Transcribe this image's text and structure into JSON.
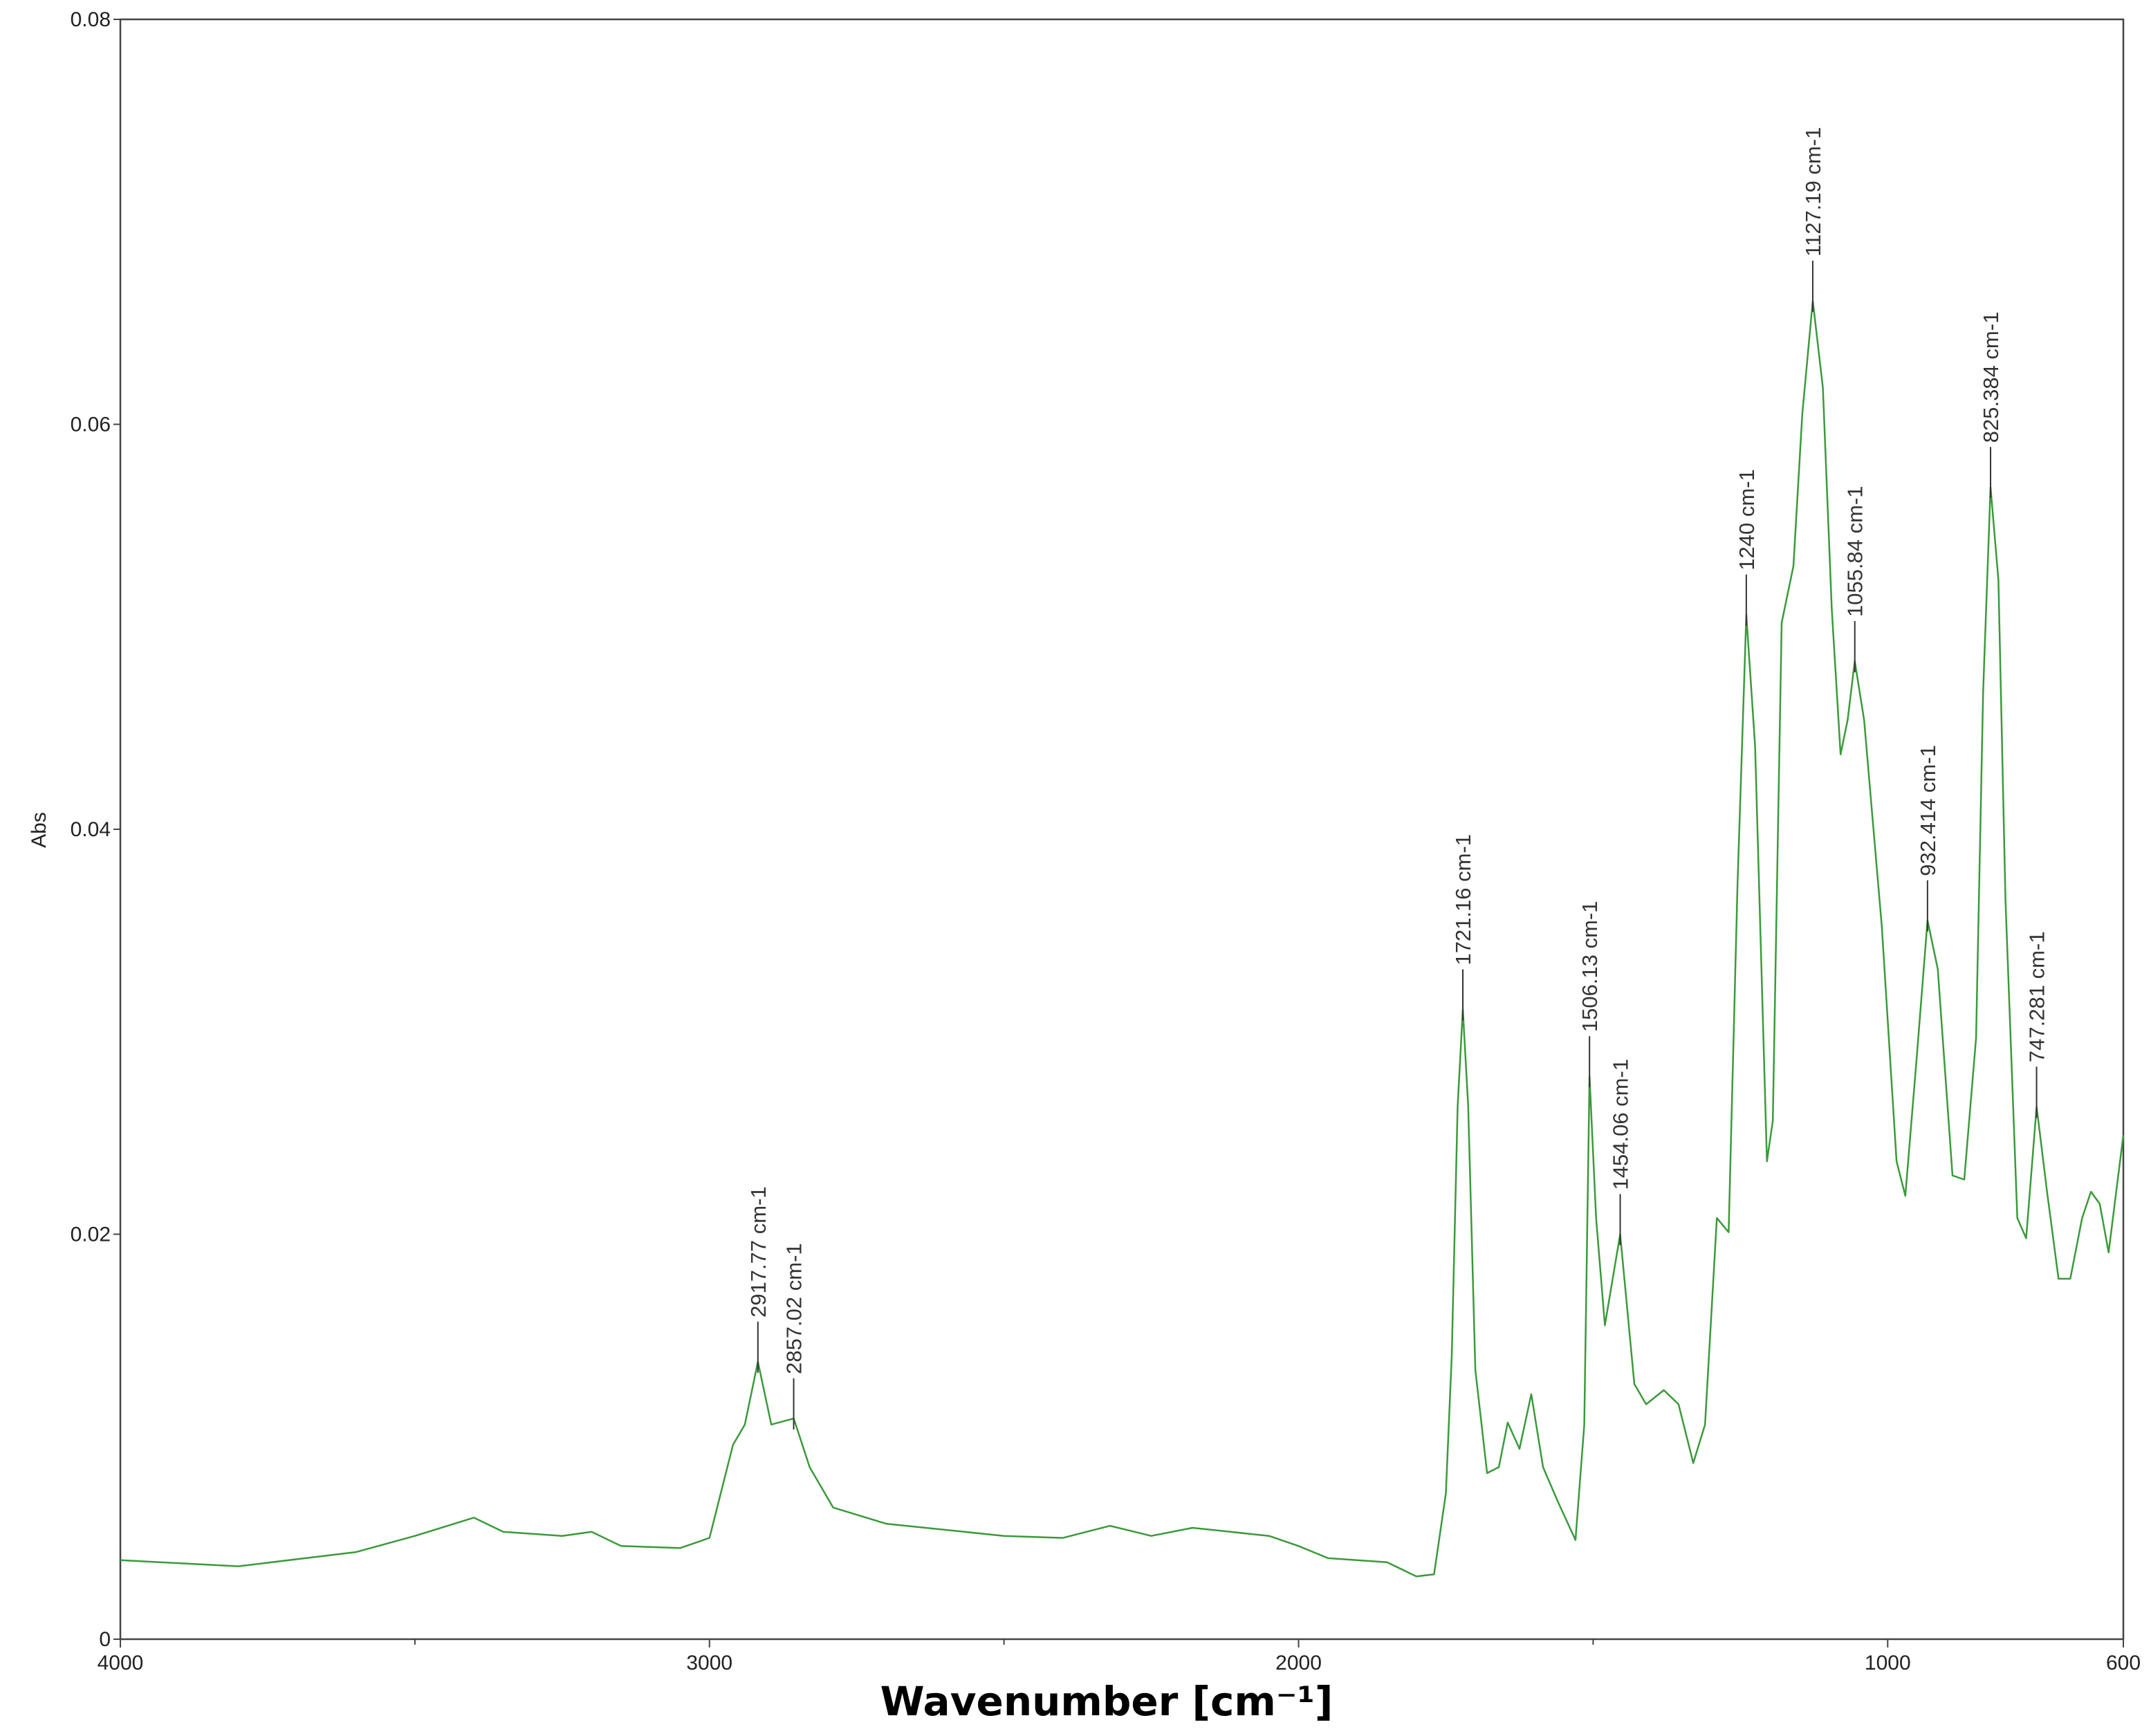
{
  "chart_data": {
    "type": "line",
    "xlabel": "Wavenumber [cm⁻¹]",
    "ylabel": "Abs",
    "xlim": [
      4000,
      600
    ],
    "ylim": [
      0,
      0.08
    ],
    "xticks": [
      4000,
      3000,
      2000,
      1000,
      600
    ],
    "xminorticks": [
      3500,
      2500,
      1500
    ],
    "yticks": [
      0,
      0.02,
      0.04,
      0.06,
      0.08
    ],
    "x": [
      4000,
      3800,
      3600,
      3500,
      3400,
      3350,
      3250,
      3200,
      3150,
      3050,
      3000,
      2960,
      2940,
      2917.77,
      2895,
      2857,
      2830,
      2790,
      2700,
      2500,
      2400,
      2320,
      2250,
      2180,
      2050,
      2000,
      1950,
      1850,
      1800,
      1770,
      1750,
      1740,
      1730,
      1721.16,
      1712,
      1700,
      1680,
      1660,
      1645,
      1625,
      1605,
      1585,
      1560,
      1530,
      1515,
      1506.13,
      1495,
      1480,
      1454.06,
      1430,
      1410,
      1380,
      1355,
      1330,
      1310,
      1290,
      1270,
      1255,
      1240,
      1225,
      1205,
      1195,
      1180,
      1160,
      1145,
      1127.19,
      1110,
      1095,
      1080,
      1068,
      1055.84,
      1040,
      1010,
      985,
      970,
      950,
      932.414,
      915,
      890,
      870,
      850,
      838,
      825.384,
      812,
      800,
      780,
      765,
      747.281,
      730,
      710,
      690,
      670,
      655,
      640,
      625,
      600
    ],
    "series": [
      {
        "color": "#3a9a3a",
        "values": [
          0.0039,
          0.0036,
          0.0043,
          0.0051,
          0.006,
          0.0053,
          0.0051,
          0.0053,
          0.0046,
          0.0045,
          0.005,
          0.0096,
          0.0106,
          0.0137,
          0.0106,
          0.0109,
          0.0085,
          0.0065,
          0.0057,
          0.0051,
          0.005,
          0.0056,
          0.0051,
          0.0055,
          0.0051,
          0.0046,
          0.004,
          0.0038,
          0.0031,
          0.0032,
          0.0072,
          0.014,
          0.0263,
          0.0311,
          0.0263,
          0.0133,
          0.0082,
          0.0085,
          0.0107,
          0.0094,
          0.0121,
          0.0085,
          0.0068,
          0.0049,
          0.0106,
          0.0278,
          0.0208,
          0.0155,
          0.02,
          0.0126,
          0.0116,
          0.0123,
          0.0116,
          0.0087,
          0.0106,
          0.0208,
          0.0201,
          0.0372,
          0.0506,
          0.0441,
          0.0236,
          0.0256,
          0.0502,
          0.053,
          0.0605,
          0.0661,
          0.0618,
          0.0509,
          0.0437,
          0.0454,
          0.0483,
          0.0454,
          0.0352,
          0.0236,
          0.0219,
          0.029,
          0.0355,
          0.0331,
          0.0229,
          0.0227,
          0.0297,
          0.0468,
          0.0569,
          0.0523,
          0.0365,
          0.0208,
          0.0198,
          0.0263,
          0.0222,
          0.0178,
          0.0178,
          0.0208,
          0.0221,
          0.0215,
          0.0191,
          0.0249
        ]
      }
    ],
    "annotations": [
      {
        "x": 2917.77,
        "y": 0.0137,
        "label": "2917.77 cm-1"
      },
      {
        "x": 2857.02,
        "y": 0.0109,
        "label": "2857.02 cm-1"
      },
      {
        "x": 1721.16,
        "y": 0.0311,
        "label": "1721.16 cm-1"
      },
      {
        "x": 1506.13,
        "y": 0.0278,
        "label": "1506.13 cm-1"
      },
      {
        "x": 1454.06,
        "y": 0.02,
        "label": "1454.06 cm-1"
      },
      {
        "x": 1240,
        "y": 0.0506,
        "label": "1240 cm-1"
      },
      {
        "x": 1127.19,
        "y": 0.0661,
        "label": "1127.19 cm-1"
      },
      {
        "x": 1055.84,
        "y": 0.0483,
        "label": "1055.84 cm-1"
      },
      {
        "x": 932.414,
        "y": 0.0355,
        "label": "932.414 cm-1"
      },
      {
        "x": 825.384,
        "y": 0.0569,
        "label": "825.384 cm-1"
      },
      {
        "x": 747.281,
        "y": 0.0263,
        "label": "747.281 cm-1"
      }
    ]
  }
}
